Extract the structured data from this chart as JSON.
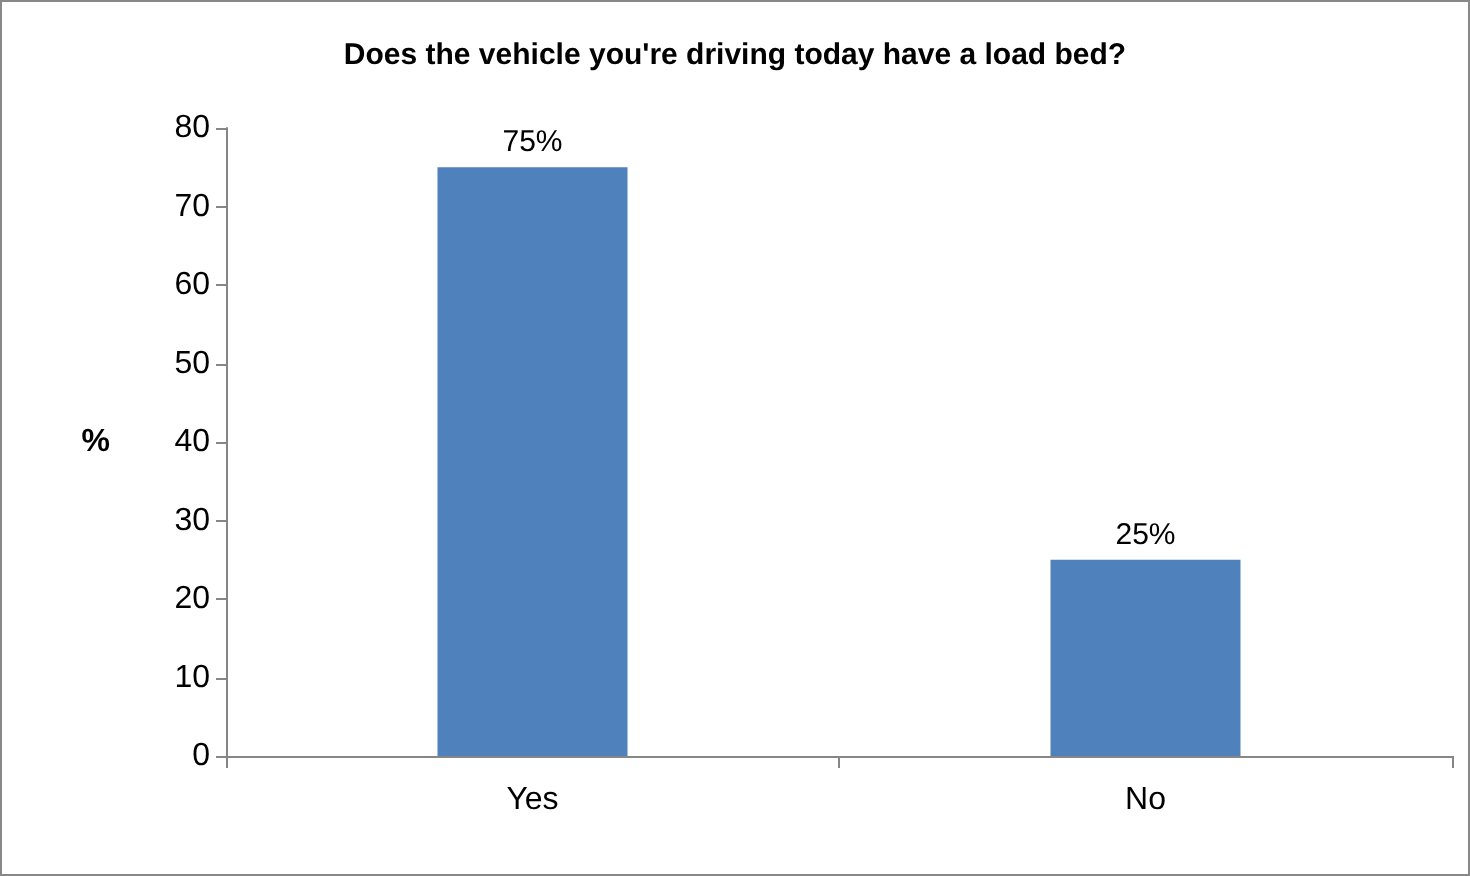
{
  "chart_data": {
    "type": "bar",
    "title": "Does the vehicle you're driving today have a load bed?",
    "ylabel": "%",
    "categories": [
      "Yes",
      "No"
    ],
    "values": [
      75,
      25
    ],
    "value_labels": [
      "75%",
      "25%"
    ],
    "color": "#4f81bd",
    "ylim": [
      0,
      80
    ],
    "yticks": [
      0,
      10,
      20,
      30,
      40,
      50,
      60,
      70,
      80
    ],
    "grid": false
  }
}
